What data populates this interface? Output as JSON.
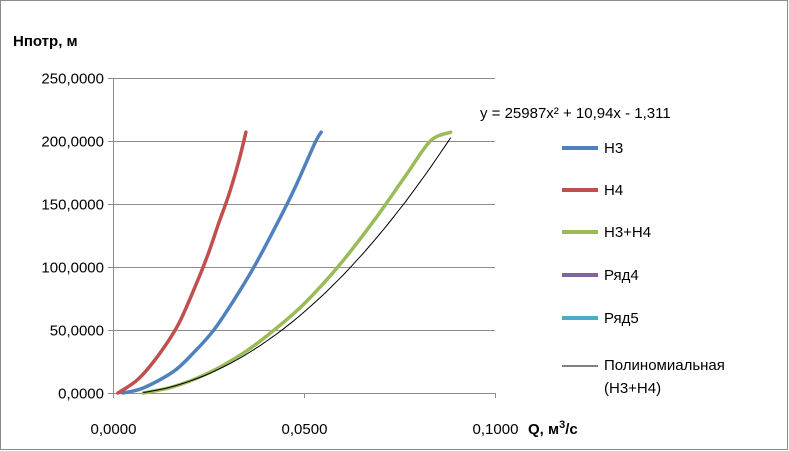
{
  "chart_data": {
    "type": "line",
    "xlabel_main": "Q, м",
    "xlabel_sup": "3",
    "xlabel_tail": "/с",
    "ylabel": "Нпотр, м",
    "xlim": [
      0,
      0.1
    ],
    "ylim": [
      0,
      250
    ],
    "grid": true,
    "legend_position": "right",
    "x_ticks": [
      0,
      0.05,
      0.1
    ],
    "x_tick_labels": [
      "0,0000",
      "0,0500",
      "0,1000"
    ],
    "y_ticks": [
      0,
      50,
      100,
      150,
      200,
      250
    ],
    "y_tick_labels": [
      "0,0000",
      "50,0000",
      "100,0000",
      "150,0000",
      "200,0000",
      "250,0000"
    ],
    "series": [
      {
        "name": "Н3",
        "color": "#4f81bd",
        "x": [
          0.0026,
          0.0079,
          0.0158,
          0.0211,
          0.0264,
          0.0317,
          0.0369,
          0.0422,
          0.0475,
          0.0528,
          0.0545
        ],
        "y": [
          0,
          4,
          17,
          32,
          50,
          74,
          100,
          130,
          162,
          198,
          207
        ]
      },
      {
        "name": "Н4",
        "color": "#c0504d",
        "x": [
          0.0013,
          0.0066,
          0.0119,
          0.0172,
          0.0224,
          0.0251,
          0.0277,
          0.0304,
          0.033,
          0.0348
        ],
        "y": [
          0,
          11,
          30,
          55,
          91,
          112,
          135,
          158,
          185,
          207
        ]
      },
      {
        "name": "Н3+Н4",
        "color": "#9bbb59",
        "x": [
          0.0079,
          0.0158,
          0.0251,
          0.0343,
          0.0422,
          0.0501,
          0.0594,
          0.0686,
          0.0765,
          0.0831,
          0.0884
        ],
        "y": [
          0,
          5,
          16,
          32,
          50,
          71,
          102,
          138,
          172,
          200,
          207
        ]
      },
      {
        "name": "Ряд4",
        "color": "#8064a2",
        "x": [],
        "y": []
      },
      {
        "name": "Ряд5",
        "color": "#4bacc6",
        "x": [],
        "y": []
      }
    ],
    "trendline": {
      "name_line1": "Полиномиальная",
      "name_line2": "(Н3+Н4)",
      "of_series": "Н3+Н4",
      "color": "#000000",
      "equation": "y = 25987x² + 10,94x - 1,311",
      "coefficients": [
        25987,
        10.94,
        -1.311
      ],
      "x_range": [
        0.0079,
        0.0884
      ]
    }
  }
}
